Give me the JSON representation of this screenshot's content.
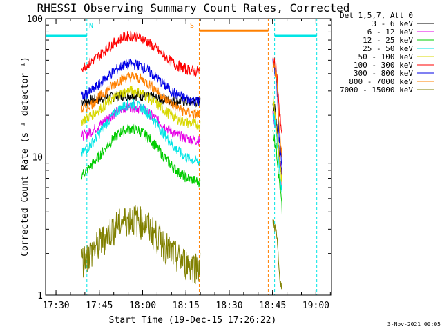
{
  "chart_data": {
    "type": "line",
    "title": "RHESSI Observing Summary Count Rates, Corrected",
    "xlabel": "Start Time (19-Dec-15 17:26:22)",
    "ylabel": "Corrected Count Rate (s⁻¹ detector⁻¹)",
    "x_units": "minutes after 17:26:22",
    "xlim": [
      0,
      99
    ],
    "ylim": [
      1,
      100
    ],
    "y_scale": "log",
    "x_tick_labels": [
      "17:30",
      "17:45",
      "18:00",
      "18:15",
      "18:30",
      "18:45",
      "19:00"
    ],
    "x_tick_values": [
      3.6,
      18.6,
      33.6,
      48.6,
      63.6,
      78.6,
      93.6
    ],
    "y_tick_labels": [
      "1",
      "10",
      "100"
    ],
    "y_tick_values": [
      1,
      10,
      100
    ],
    "legend_title": "Det 1,5,7, Att 0",
    "legend_position": "top-right",
    "segments": [
      [
        12.5,
        53.5
      ],
      [
        78.7,
        81.9
      ]
    ],
    "series": [
      {
        "name": "3 - 6 keV",
        "color": "#000000",
        "edge": 25,
        "peak": 28,
        "tail": [
          25,
          20,
          11,
          7
        ]
      },
      {
        "name": "6 - 12 keV",
        "color": "#e600e6",
        "edge": 13,
        "peak": 23,
        "tail": [
          20,
          17,
          10,
          6
        ]
      },
      {
        "name": "12 - 25 keV",
        "color": "#00cc00",
        "edge": 6.5,
        "peak": 16,
        "tail": [
          15,
          12,
          7,
          4
        ]
      },
      {
        "name": "25 - 50 keV",
        "color": "#00e5e5",
        "edge": 9,
        "peak": 24,
        "tail": [
          22,
          15,
          9,
          5
        ]
      },
      {
        "name": "50 - 100 keV",
        "color": "#d8d800",
        "edge": 17,
        "peak": 30,
        "tail": [
          28,
          18,
          10,
          6
        ]
      },
      {
        "name": "100 - 300 keV",
        "color": "#ff0000",
        "edge": 41,
        "peak": 75,
        "tail": [
          50,
          45,
          22,
          14
        ]
      },
      {
        "name": "300 - 800 keV",
        "color": "#0000e6",
        "edge": 25,
        "peak": 47,
        "tail": [
          47,
          40,
          14,
          8
        ]
      },
      {
        "name": "800 - 7000 keV",
        "color": "#ff8000",
        "edge": 20,
        "peak": 38,
        "tail": [
          45,
          40,
          16,
          10
        ]
      },
      {
        "name": "7000 - 15000 keV",
        "color": "#808000",
        "edge": 1.6,
        "peak": 3.6,
        "tail": [
          3.4,
          3.0,
          1.5,
          1.0
        ]
      }
    ],
    "markers": {
      "night": {
        "label": "N",
        "color": "#00e5e5",
        "x": [
          0,
          14.3,
          79.3,
          93.9
        ],
        "bar_y": 75,
        "bars": [
          [
            0,
            14.3
          ],
          [
            79.3,
            93.9
          ]
        ]
      },
      "saa": {
        "label": "S",
        "color": "#ff8000",
        "x": [
          53.2,
          77.1
        ],
        "bar_y": 82,
        "bars": [
          [
            53.2,
            77.1
          ]
        ]
      }
    },
    "timestamp": "3-Nov-2021 00:05"
  }
}
